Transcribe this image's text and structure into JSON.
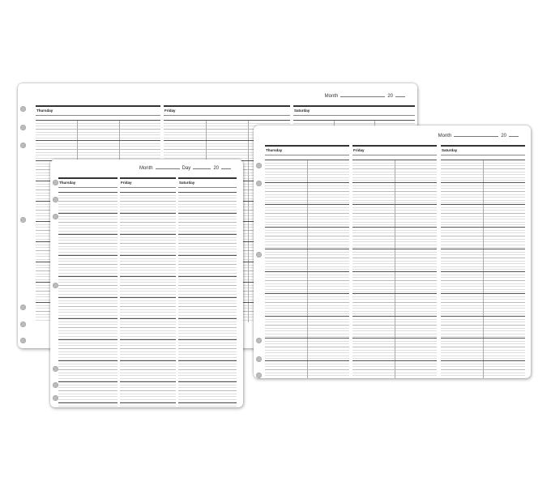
{
  "days": [
    "Thursday",
    "Friday",
    "Saturday"
  ],
  "labels": {
    "month": "Month",
    "day": "Day",
    "year": "20"
  },
  "colors": {
    "rule": "#333333",
    "line": "#bbbbbb",
    "hole": "#bbbbbb"
  },
  "sheets": [
    {
      "name": "back-sheet-wide",
      "show_day_field": false
    },
    {
      "name": "right-sheet-wide",
      "show_day_field": false
    },
    {
      "name": "front-sheet-compact",
      "show_day_field": true
    }
  ]
}
